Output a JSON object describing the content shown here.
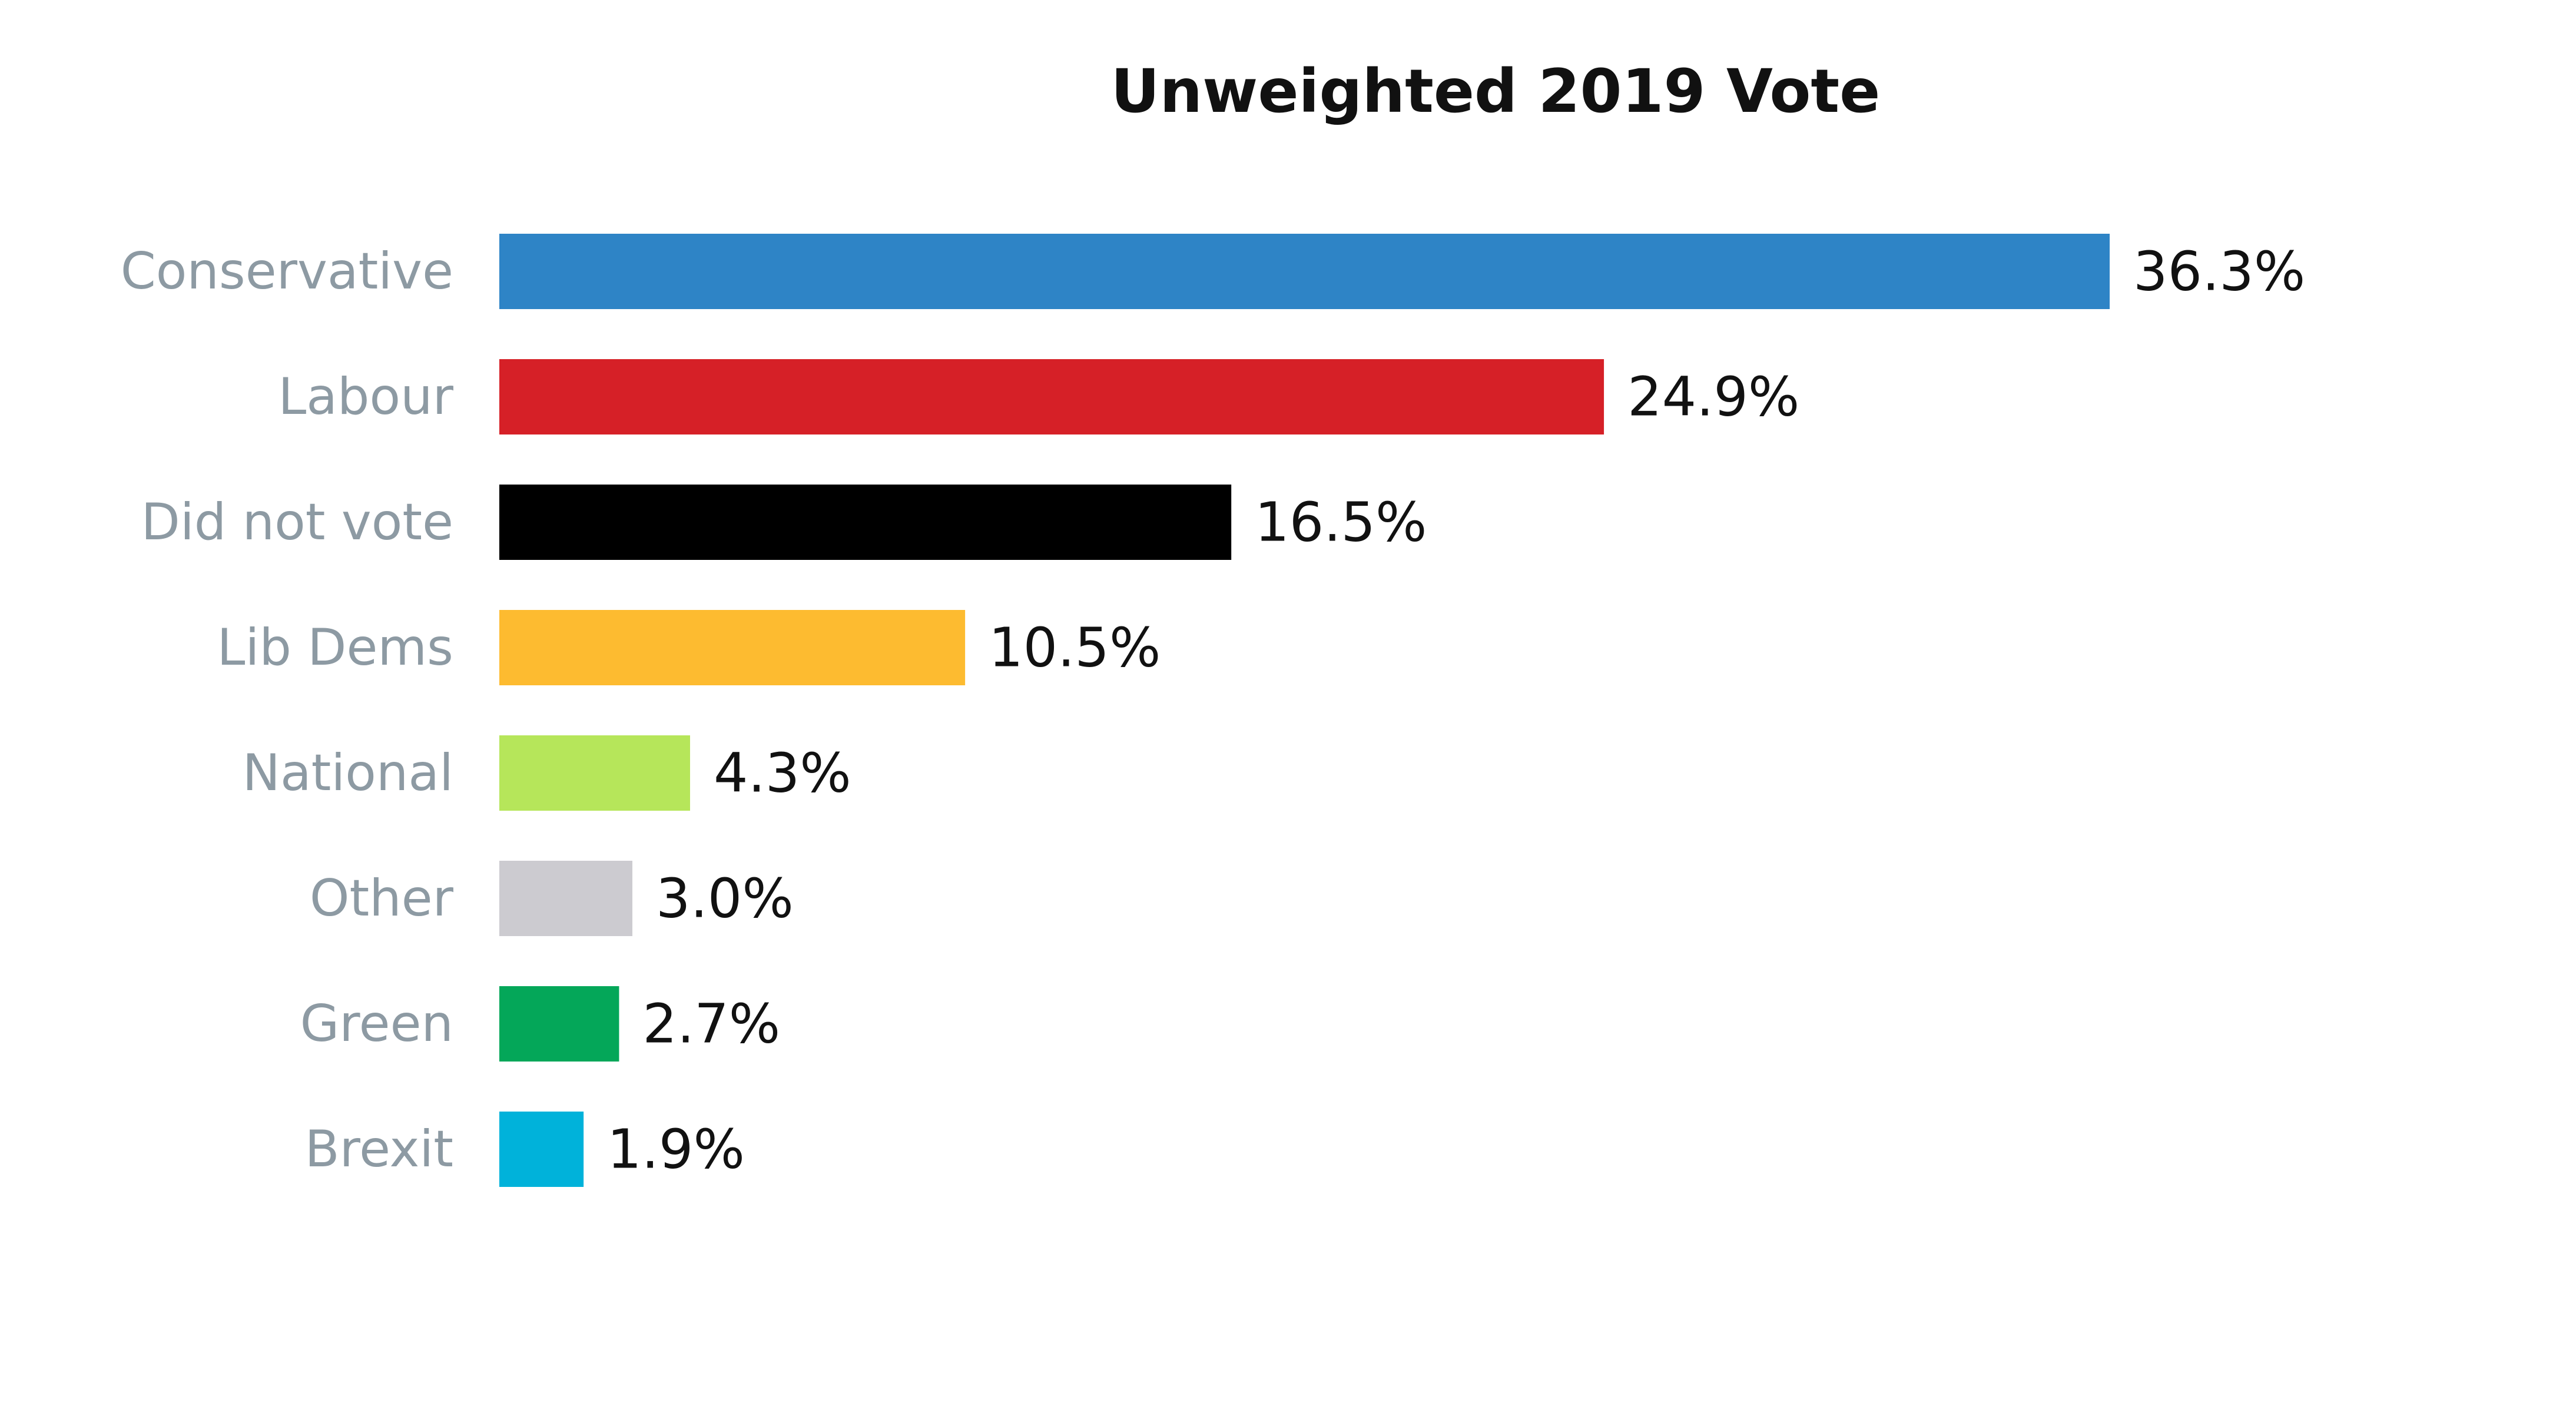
{
  "chart_data": {
    "type": "bar",
    "orientation": "horizontal",
    "title": "Unweighted 2019 Vote",
    "xlabel": "",
    "ylabel": "",
    "unit": "%",
    "xlim": [
      0,
      36.3
    ],
    "grid": false,
    "legend": "none",
    "categories": [
      "Conservative",
      "Labour",
      "Did not vote",
      "Lib Dems",
      "National",
      "Other",
      "Green",
      "Brexit"
    ],
    "values": [
      36.3,
      24.9,
      16.5,
      10.5,
      4.3,
      3.0,
      2.7,
      1.9
    ],
    "value_labels": [
      "36.3%",
      "24.9%",
      "16.5%",
      "10.5%",
      "4.3%",
      "3.0%",
      "2.7%",
      "1.9%"
    ],
    "colors": [
      "#2e84c6",
      "#d62027",
      "#000000",
      "#fdbb30",
      "#b6e65a",
      "#cccbd0",
      "#04a759",
      "#00b2da"
    ],
    "label_color": "#8d9aa3",
    "value_label_color": "#111111",
    "title_color": "#111111"
  }
}
